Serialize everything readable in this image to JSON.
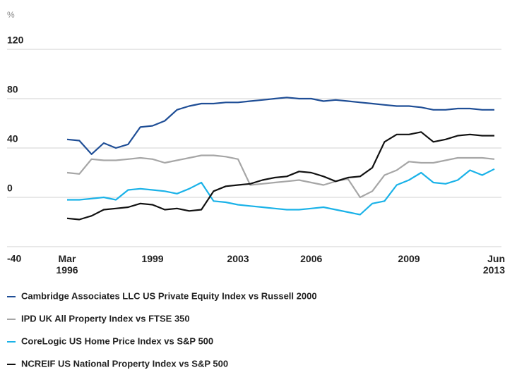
{
  "chart_data": {
    "type": "line",
    "y_label": "%",
    "categories": [
      "Mar 1996",
      null,
      null,
      null,
      null,
      null,
      null,
      "1999",
      null,
      null,
      null,
      null,
      null,
      null,
      "2003",
      null,
      null,
      null,
      null,
      null,
      "2006",
      null,
      null,
      null,
      null,
      null,
      null,
      null,
      "2009",
      null,
      null,
      null,
      null,
      null,
      null,
      "Jun 2013"
    ],
    "ylim": [
      -40,
      120
    ],
    "yticks": [
      -40,
      0,
      40,
      80,
      120
    ],
    "grid": true,
    "legend": "bottom",
    "series": [
      {
        "name": "Cambridge Associates LLC US Private Equity Index vs Russell 2000",
        "color": "#1f4e96",
        "values": [
          47,
          46,
          35,
          44,
          40,
          43,
          57,
          58,
          62,
          71,
          74,
          76,
          76,
          77,
          77,
          78,
          79,
          80,
          81,
          80,
          80,
          78,
          79,
          78,
          77,
          76,
          75,
          74,
          74,
          73,
          71,
          71,
          72,
          72,
          71,
          71
        ]
      },
      {
        "name": "IPD UK All Property Index vs FTSE 350",
        "color": "#a6a6a6",
        "values": [
          20,
          19,
          31,
          30,
          30,
          31,
          32,
          31,
          28,
          30,
          32,
          34,
          34,
          33,
          31,
          10,
          11,
          12,
          13,
          14,
          12,
          10,
          13,
          15,
          0,
          5,
          18,
          22,
          29,
          28,
          28,
          30,
          32,
          32,
          32,
          31
        ]
      },
      {
        "name": "CoreLogic US Home Price Index vs S&P 500",
        "color": "#1ab2e8",
        "values": [
          -2,
          -2,
          -1,
          0,
          -2,
          6,
          7,
          6,
          5,
          3,
          7,
          12,
          -3,
          -4,
          -6,
          -7,
          -8,
          -9,
          -10,
          -10,
          -9,
          -8,
          -10,
          -12,
          -14,
          -5,
          -3,
          10,
          14,
          20,
          12,
          11,
          14,
          22,
          18,
          23
        ]
      },
      {
        "name": "NCREIF US National Property Index vs S&P 500",
        "color": "#111111",
        "values": [
          -17,
          -18,
          -15,
          -10,
          -9,
          -8,
          -5,
          -6,
          -10,
          -9,
          -11,
          -10,
          5,
          9,
          10,
          11,
          14,
          16,
          17,
          21,
          20,
          17,
          13,
          16,
          17,
          24,
          45,
          51,
          51,
          53,
          45,
          47,
          50,
          51,
          50,
          50
        ]
      }
    ]
  }
}
